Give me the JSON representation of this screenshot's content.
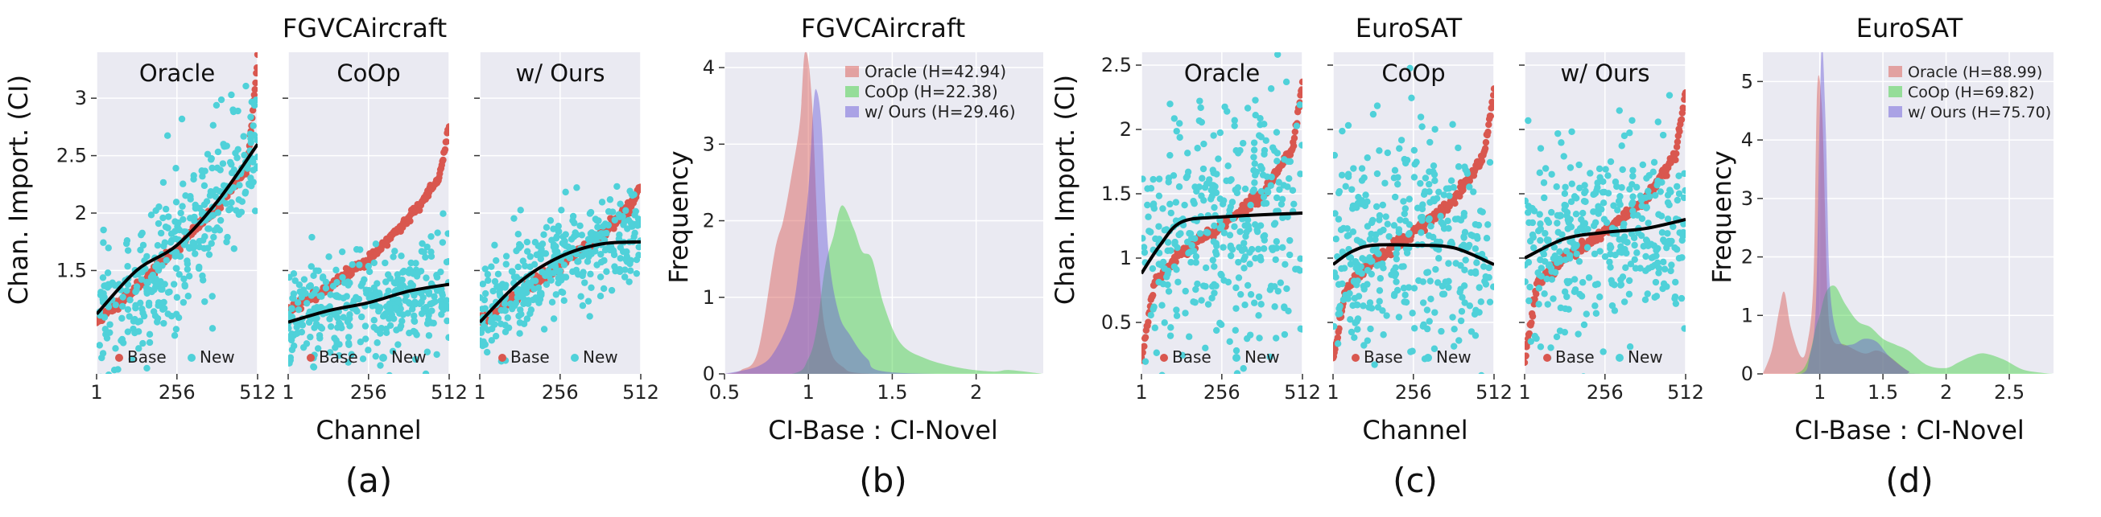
{
  "chart_data": [
    {
      "id": "a",
      "type": "scatter",
      "caption": "(a)",
      "title": "FGVCAircraft",
      "xlabel": "Channel",
      "ylabel": "Chan. Import. (CI)",
      "x_ticks": [
        "1",
        "256",
        "512"
      ],
      "y_ticks": [
        "1.5",
        "2",
        "2.5",
        "3"
      ],
      "xlim": [
        1,
        512
      ],
      "ylim": [
        0.6,
        3.4
      ],
      "grid": true,
      "legend_position": "bottom",
      "legend": [
        "Base",
        "New"
      ],
      "colors": {
        "base": "#d9574f",
        "new": "#4fd1d9",
        "trend": "#000000",
        "bg": "#eaeaf2"
      },
      "subplots": [
        {
          "title": "Oracle",
          "base_curve": [
            [
              1,
              1.05
            ],
            [
              128,
              1.35
            ],
            [
              256,
              1.7
            ],
            [
              384,
              2.05
            ],
            [
              480,
              2.4
            ],
            [
              512,
              3.35
            ]
          ],
          "trend": [
            [
              1,
              1.12
            ],
            [
              128,
              1.5
            ],
            [
              256,
              1.72
            ],
            [
              384,
              2.1
            ],
            [
              512,
              2.6
            ]
          ],
          "new_center": [
            [
              1,
              1.05
            ],
            [
              256,
              1.65
            ],
            [
              512,
              2.6
            ]
          ],
          "new_spread": 0.32
        },
        {
          "title": "CoOp",
          "base_curve": [
            [
              1,
              1.15
            ],
            [
              128,
              1.35
            ],
            [
              256,
              1.6
            ],
            [
              384,
              1.95
            ],
            [
              480,
              2.3
            ],
            [
              512,
              2.75
            ]
          ],
          "trend": [
            [
              1,
              1.05
            ],
            [
              128,
              1.15
            ],
            [
              256,
              1.22
            ],
            [
              384,
              1.32
            ],
            [
              512,
              1.38
            ]
          ],
          "new_center": [
            [
              1,
              1.1
            ],
            [
              256,
              1.2
            ],
            [
              512,
              1.3
            ]
          ],
          "new_spread": 0.22
        },
        {
          "title": "w/ Ours",
          "base_curve": [
            [
              1,
              1.05
            ],
            [
              128,
              1.3
            ],
            [
              256,
              1.55
            ],
            [
              384,
              1.8
            ],
            [
              480,
              2.05
            ],
            [
              512,
              2.25
            ]
          ],
          "trend": [
            [
              1,
              1.05
            ],
            [
              128,
              1.4
            ],
            [
              256,
              1.62
            ],
            [
              384,
              1.73
            ],
            [
              512,
              1.75
            ]
          ],
          "new_center": [
            [
              1,
              1.1
            ],
            [
              256,
              1.6
            ],
            [
              512,
              1.78
            ]
          ],
          "new_spread": 0.2
        }
      ]
    },
    {
      "id": "b",
      "type": "area",
      "caption": "(b)",
      "title": "FGVCAircraft",
      "xlabel": "CI-Base : CI-Novel",
      "ylabel": "Frequency",
      "x_ticks": [
        "0.5",
        "1",
        "1.5",
        "2"
      ],
      "y_ticks": [
        "0",
        "1",
        "2",
        "3",
        "4"
      ],
      "xlim": [
        0.5,
        2.4
      ],
      "ylim": [
        0,
        4.2
      ],
      "grid": true,
      "legend_position": "top-right",
      "series": [
        {
          "name": "Oracle (H=42.94)",
          "color": "#d9574f",
          "points": [
            [
              0.5,
              0
            ],
            [
              0.6,
              0.05
            ],
            [
              0.7,
              0.3
            ],
            [
              0.8,
              1.6
            ],
            [
              0.85,
              2.0
            ],
            [
              0.9,
              2.6
            ],
            [
              0.95,
              3.3
            ],
            [
              0.98,
              4.2
            ],
            [
              1.02,
              3.6
            ],
            [
              1.07,
              1.2
            ],
            [
              1.12,
              0.4
            ],
            [
              1.2,
              0.1
            ],
            [
              1.4,
              0
            ],
            [
              2.4,
              0
            ]
          ]
        },
        {
          "name": "CoOp (H=22.38)",
          "color": "#3fd03f",
          "points": [
            [
              0.5,
              0
            ],
            [
              0.9,
              0
            ],
            [
              1.0,
              0.2
            ],
            [
              1.05,
              0.6
            ],
            [
              1.1,
              1.4
            ],
            [
              1.15,
              1.8
            ],
            [
              1.2,
              2.2
            ],
            [
              1.27,
              1.9
            ],
            [
              1.32,
              1.6
            ],
            [
              1.38,
              1.5
            ],
            [
              1.45,
              0.9
            ],
            [
              1.55,
              0.4
            ],
            [
              1.7,
              0.2
            ],
            [
              1.9,
              0.08
            ],
            [
              2.1,
              0.03
            ],
            [
              2.2,
              0.05
            ],
            [
              2.4,
              0
            ]
          ]
        },
        {
          "name": "w/ Ours (H=29.46)",
          "color": "#6a5ad8",
          "points": [
            [
              0.5,
              0
            ],
            [
              0.7,
              0.1
            ],
            [
              0.8,
              0.3
            ],
            [
              0.9,
              0.8
            ],
            [
              0.95,
              1.5
            ],
            [
              1.0,
              2.4
            ],
            [
              1.03,
              3.5
            ],
            [
              1.05,
              3.7
            ],
            [
              1.08,
              3.2
            ],
            [
              1.12,
              1.6
            ],
            [
              1.18,
              0.8
            ],
            [
              1.25,
              0.5
            ],
            [
              1.35,
              0.2
            ],
            [
              1.5,
              0.02
            ],
            [
              2.4,
              0
            ]
          ]
        }
      ]
    },
    {
      "id": "c",
      "type": "scatter",
      "caption": "(c)",
      "title": "EuroSAT",
      "xlabel": "Channel",
      "ylabel": "Chan. Import. (CI)",
      "x_ticks": [
        "1",
        "256",
        "512"
      ],
      "y_ticks": [
        "0.5",
        "1",
        "1.5",
        "2",
        "2.5"
      ],
      "xlim": [
        1,
        512
      ],
      "ylim": [
        0.1,
        2.6
      ],
      "grid": true,
      "legend_position": "bottom",
      "legend": [
        "Base",
        "New"
      ],
      "colors": {
        "base": "#d9574f",
        "new": "#4fd1d9",
        "trend": "#000000",
        "bg": "#eaeaf2"
      },
      "subplots": [
        {
          "title": "Oracle",
          "base_curve": [
            [
              1,
              0.2
            ],
            [
              40,
              0.8
            ],
            [
              128,
              1.05
            ],
            [
              256,
              1.25
            ],
            [
              384,
              1.5
            ],
            [
              480,
              1.85
            ],
            [
              512,
              2.35
            ]
          ],
          "trend": [
            [
              1,
              0.88
            ],
            [
              60,
              1.1
            ],
            [
              128,
              1.28
            ],
            [
              256,
              1.32
            ],
            [
              512,
              1.35
            ]
          ],
          "new_center": [
            [
              1,
              0.9
            ],
            [
              128,
              1.3
            ],
            [
              512,
              1.3
            ]
          ],
          "new_spread": 0.5
        },
        {
          "title": "CoOp",
          "base_curve": [
            [
              1,
              0.2
            ],
            [
              40,
              0.75
            ],
            [
              128,
              0.98
            ],
            [
              256,
              1.2
            ],
            [
              384,
              1.45
            ],
            [
              480,
              1.8
            ],
            [
              512,
              2.3
            ]
          ],
          "trend": [
            [
              1,
              0.95
            ],
            [
              60,
              1.05
            ],
            [
              128,
              1.1
            ],
            [
              256,
              1.1
            ],
            [
              384,
              1.08
            ],
            [
              512,
              0.95
            ]
          ],
          "new_center": [
            [
              1,
              1.0
            ],
            [
              256,
              1.1
            ],
            [
              512,
              1.0
            ]
          ],
          "new_spread": 0.45
        },
        {
          "title": "w/ Ours",
          "base_curve": [
            [
              1,
              0.2
            ],
            [
              40,
              0.8
            ],
            [
              128,
              1.0
            ],
            [
              256,
              1.2
            ],
            [
              384,
              1.45
            ],
            [
              480,
              1.8
            ],
            [
              512,
              2.3
            ]
          ],
          "trend": [
            [
              1,
              1.0
            ],
            [
              128,
              1.15
            ],
            [
              256,
              1.2
            ],
            [
              384,
              1.23
            ],
            [
              512,
              1.3
            ]
          ],
          "new_center": [
            [
              1,
              1.05
            ],
            [
              256,
              1.2
            ],
            [
              512,
              1.25
            ]
          ],
          "new_spread": 0.35
        }
      ]
    },
    {
      "id": "d",
      "type": "area",
      "caption": "(d)",
      "title": "EuroSAT",
      "xlabel": "CI-Base : CI-Novel",
      "ylabel": "Frequency",
      "x_ticks": [
        "1",
        "1.5",
        "2",
        "2.5"
      ],
      "y_ticks": [
        "0",
        "1",
        "2",
        "3",
        "4",
        "5"
      ],
      "xlim": [
        0.55,
        2.85
      ],
      "ylim": [
        0,
        5.5
      ],
      "grid": true,
      "legend_position": "top-right",
      "series": [
        {
          "name": "Oracle (H=88.99)",
          "color": "#d9574f",
          "points": [
            [
              0.55,
              0
            ],
            [
              0.62,
              0.4
            ],
            [
              0.68,
              1.1
            ],
            [
              0.72,
              1.4
            ],
            [
              0.77,
              0.8
            ],
            [
              0.85,
              0.3
            ],
            [
              0.9,
              0.5
            ],
            [
              0.95,
              1.6
            ],
            [
              0.98,
              4.9
            ],
            [
              1.02,
              4.4
            ],
            [
              1.06,
              1.4
            ],
            [
              1.1,
              0.6
            ],
            [
              1.2,
              0.5
            ],
            [
              1.35,
              0.35
            ],
            [
              1.45,
              0.4
            ],
            [
              1.55,
              0.3
            ],
            [
              1.7,
              0.05
            ],
            [
              1.8,
              0
            ],
            [
              2.85,
              0
            ]
          ]
        },
        {
          "name": "CoOp (H=69.82)",
          "color": "#3fd03f",
          "points": [
            [
              0.55,
              0
            ],
            [
              0.8,
              0
            ],
            [
              0.9,
              0.2
            ],
            [
              0.97,
              0.8
            ],
            [
              1.0,
              1.0
            ],
            [
              1.05,
              1.4
            ],
            [
              1.12,
              1.5
            ],
            [
              1.2,
              1.2
            ],
            [
              1.3,
              0.9
            ],
            [
              1.4,
              0.8
            ],
            [
              1.5,
              0.6
            ],
            [
              1.6,
              0.5
            ],
            [
              1.7,
              0.4
            ],
            [
              1.85,
              0.15
            ],
            [
              2.0,
              0.1
            ],
            [
              2.1,
              0.2
            ],
            [
              2.2,
              0.3
            ],
            [
              2.3,
              0.35
            ],
            [
              2.45,
              0.25
            ],
            [
              2.6,
              0.08
            ],
            [
              2.75,
              0.02
            ],
            [
              2.85,
              0
            ]
          ]
        },
        {
          "name": "w/ Ours (H=75.70)",
          "color": "#6a5ad8",
          "points": [
            [
              0.55,
              0
            ],
            [
              0.85,
              0
            ],
            [
              0.92,
              0.3
            ],
            [
              0.97,
              1.2
            ],
            [
              1.0,
              4.5
            ],
            [
              1.02,
              5.6
            ],
            [
              1.05,
              4.0
            ],
            [
              1.08,
              1.5
            ],
            [
              1.15,
              0.6
            ],
            [
              1.25,
              0.5
            ],
            [
              1.35,
              0.6
            ],
            [
              1.45,
              0.55
            ],
            [
              1.55,
              0.3
            ],
            [
              1.7,
              0.05
            ],
            [
              1.8,
              0
            ],
            [
              2.85,
              0
            ]
          ]
        }
      ]
    }
  ]
}
